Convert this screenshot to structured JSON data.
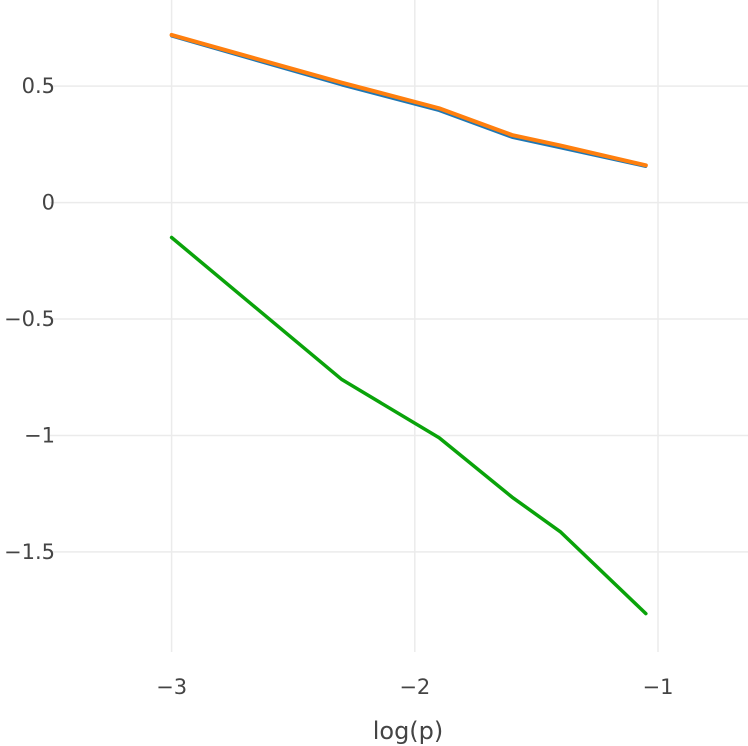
{
  "chart_data": {
    "type": "line",
    "title": "",
    "xlabel": "log(p)",
    "ylabel": "",
    "xlim": [
      -3.5,
      -0.63
    ],
    "ylim": [
      -1.93,
      0.87
    ],
    "grid": true,
    "legend": "none",
    "x_ticks": [
      -3,
      -2,
      -1
    ],
    "x_tick_labels": [
      "−3",
      "−2",
      "−1"
    ],
    "y_ticks": [
      0.5,
      0,
      -0.5,
      -1,
      -1.5
    ],
    "y_tick_labels": [
      "0.5",
      "0",
      "−0.5",
      "−1",
      "−1.5"
    ],
    "series": [
      {
        "color": "#1f77b4",
        "width": 3,
        "x": [
          -3.0,
          -2.3,
          -1.9,
          -1.6,
          -1.4,
          -1.05
        ],
        "y": [
          0.715,
          0.505,
          0.395,
          0.28,
          0.235,
          0.155
        ]
      },
      {
        "color": "#ff7f0e",
        "width": 4,
        "x": [
          -3.0,
          -2.3,
          -1.9,
          -1.6,
          -1.4,
          -1.05
        ],
        "y": [
          0.72,
          0.515,
          0.405,
          0.29,
          0.245,
          0.16
        ]
      },
      {
        "color": "#0aa30a",
        "width": 3.5,
        "x": [
          -3.0,
          -2.3,
          -1.9,
          -1.6,
          -1.4,
          -1.05
        ],
        "y": [
          -0.15,
          -0.76,
          -1.01,
          -1.265,
          -1.415,
          -1.765
        ]
      }
    ]
  }
}
